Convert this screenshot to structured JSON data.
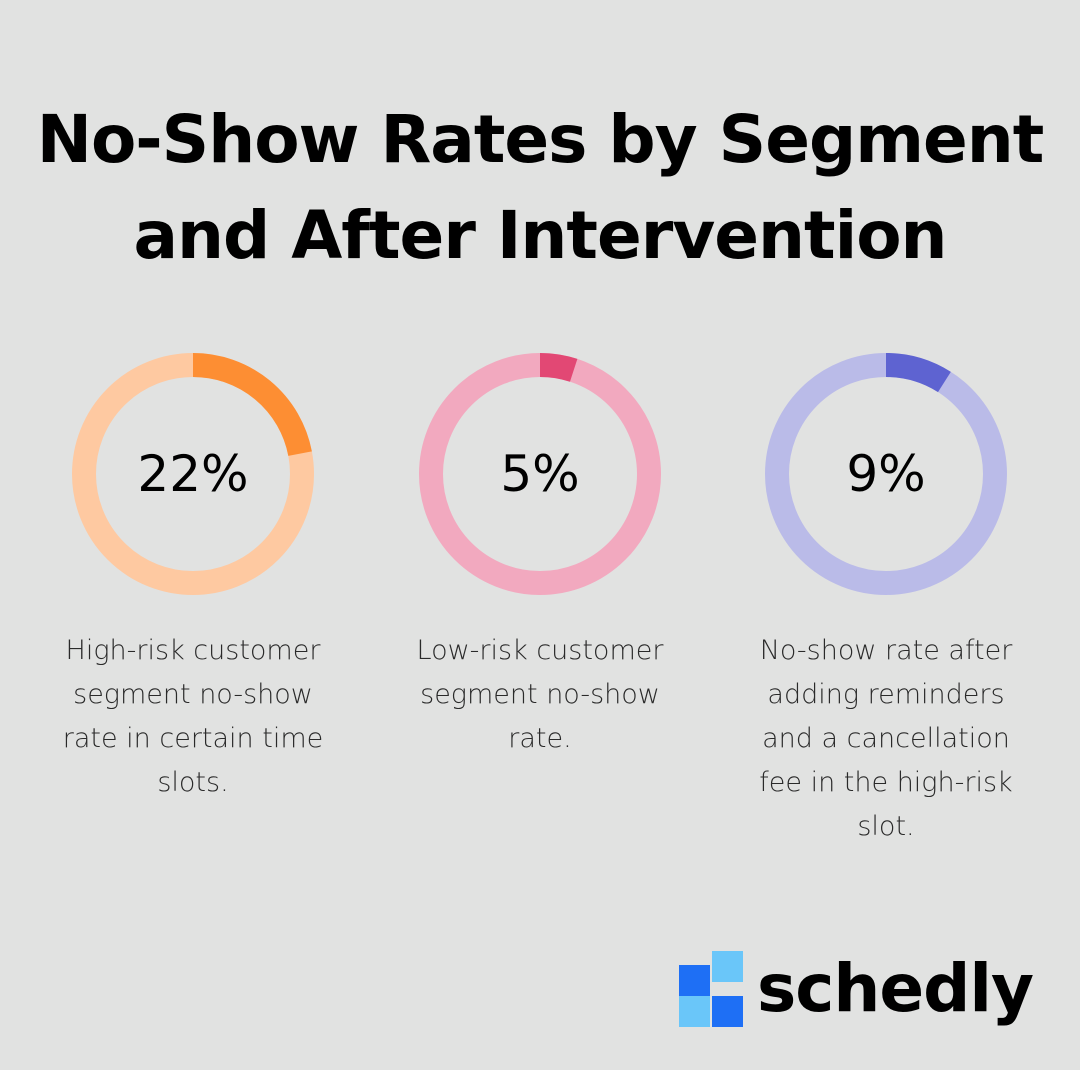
{
  "title": "No-Show Rates by Segment and After Intervention",
  "chart_data": {
    "type": "pie",
    "style": "donut",
    "items": [
      {
        "label_text": "22%",
        "value": 22,
        "description": "High-risk customer segment no-show rate in certain time slots.",
        "fill_color": "#fd8e33",
        "track_color": "#fec9a1"
      },
      {
        "label_text": "5%",
        "value": 5,
        "description": "Low-risk customer segment no-show rate.",
        "fill_color": "#e24874",
        "track_color": "#f2a9bf"
      },
      {
        "label_text": "9%",
        "value": 9,
        "description": "No-show rate after adding reminders and a cancellation fee in the high-risk slot.",
        "fill_color": "#5e63d1",
        "track_color": "#babbe8"
      }
    ]
  },
  "brand": {
    "name": "schedly",
    "logo_icon": "blue-squares-logo-icon",
    "colors": [
      "#1e6ff5",
      "#6ac6f9"
    ]
  }
}
